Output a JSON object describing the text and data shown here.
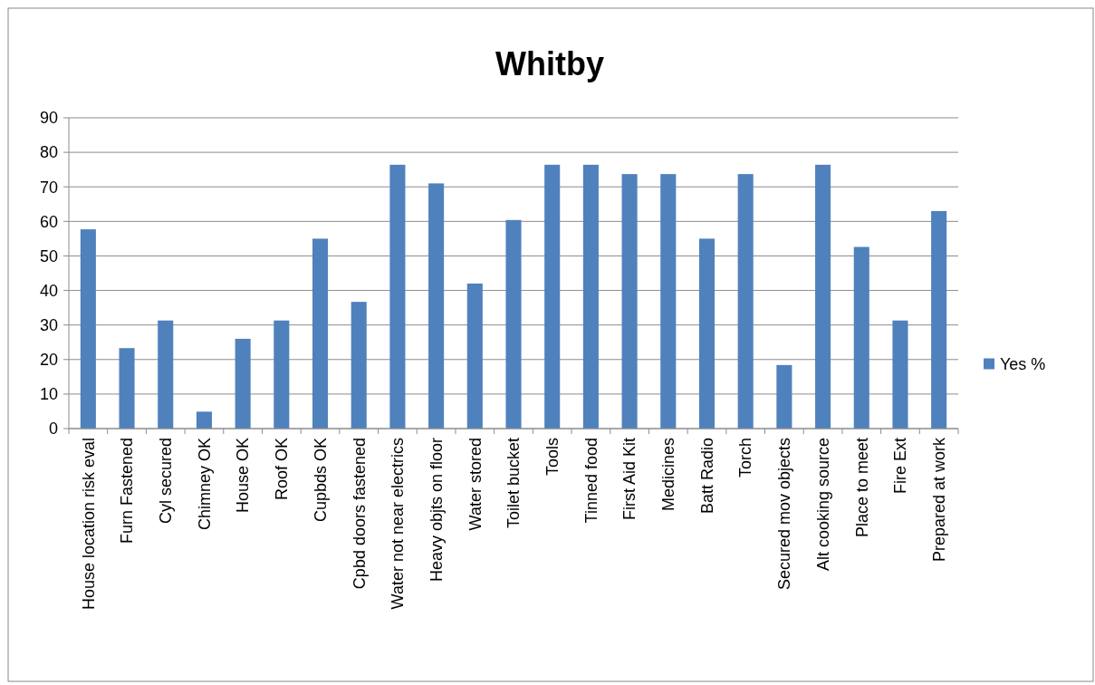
{
  "chart_data": {
    "type": "bar",
    "title": "Whitby",
    "categories": [
      "House location risk eval",
      "Furn Fastened",
      "Cyl secured",
      "Chimney OK",
      "House OK",
      "Roof OK",
      "Cupbds OK",
      "Cpbd doors fastened",
      "Water not near electrics",
      "Heavy objts on floor",
      "Water stored",
      "Toilet bucket",
      "Tools",
      "Tinned food",
      "First Aid Kit",
      "Medicines",
      "Batt Radio",
      "Torch",
      "Secured mov objects",
      "Alt cooking source",
      "Place to meet",
      "Fire Ext",
      "Prepared at work"
    ],
    "series": [
      {
        "name": "Yes %",
        "color": "#4f81bd",
        "values": [
          57.7,
          23.3,
          31.3,
          4.9,
          26.0,
          31.3,
          55.0,
          36.7,
          76.4,
          71.0,
          42.0,
          60.4,
          76.4,
          76.4,
          73.7,
          73.7,
          55.0,
          73.7,
          18.4,
          76.4,
          52.6,
          31.3,
          63.0
        ]
      }
    ],
    "ylim": [
      0,
      90
    ],
    "yticks": [
      0,
      10,
      20,
      30,
      40,
      50,
      60,
      70,
      80,
      90
    ],
    "grid": "y",
    "legend": "right"
  }
}
